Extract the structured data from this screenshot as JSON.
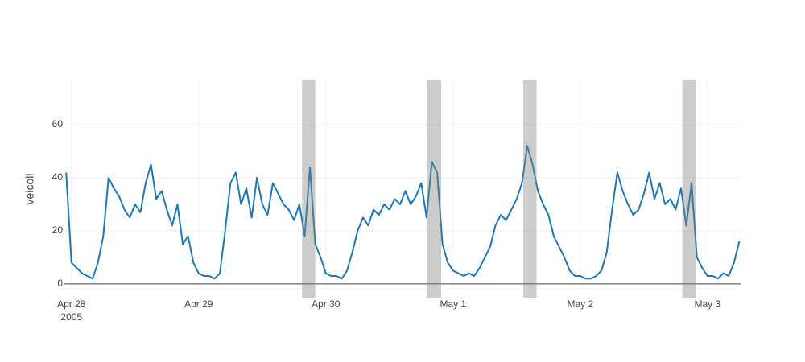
{
  "chart_data": {
    "type": "line",
    "y_title": "veicoli",
    "x": [
      "2005-04-27 23:00",
      "2005-04-28 00:00",
      "2005-04-28 01:00",
      "2005-04-28 02:00",
      "2005-04-28 03:00",
      "2005-04-28 04:00",
      "2005-04-28 05:00",
      "2005-04-28 06:00",
      "2005-04-28 07:00",
      "2005-04-28 08:00",
      "2005-04-28 09:00",
      "2005-04-28 10:00",
      "2005-04-28 11:00",
      "2005-04-28 12:00",
      "2005-04-28 13:00",
      "2005-04-28 14:00",
      "2005-04-28 15:00",
      "2005-04-28 16:00",
      "2005-04-28 17:00",
      "2005-04-28 18:00",
      "2005-04-28 19:00",
      "2005-04-28 20:00",
      "2005-04-28 21:00",
      "2005-04-28 22:00",
      "2005-04-28 23:00",
      "2005-04-29 00:00",
      "2005-04-29 01:00",
      "2005-04-29 02:00",
      "2005-04-29 03:00",
      "2005-04-29 04:00",
      "2005-04-29 05:00",
      "2005-04-29 06:00",
      "2005-04-29 07:00",
      "2005-04-29 08:00",
      "2005-04-29 09:00",
      "2005-04-29 10:00",
      "2005-04-29 11:00",
      "2005-04-29 12:00",
      "2005-04-29 13:00",
      "2005-04-29 14:00",
      "2005-04-29 15:00",
      "2005-04-29 16:00",
      "2005-04-29 17:00",
      "2005-04-29 18:00",
      "2005-04-29 19:00",
      "2005-04-29 20:00",
      "2005-04-29 21:00",
      "2005-04-29 22:00",
      "2005-04-29 23:00",
      "2005-04-30 00:00",
      "2005-04-30 01:00",
      "2005-04-30 02:00",
      "2005-04-30 03:00",
      "2005-04-30 04:00",
      "2005-04-30 05:00",
      "2005-04-30 06:00",
      "2005-04-30 07:00",
      "2005-04-30 08:00",
      "2005-04-30 09:00",
      "2005-04-30 10:00",
      "2005-04-30 11:00",
      "2005-04-30 12:00",
      "2005-04-30 13:00",
      "2005-04-30 14:00",
      "2005-04-30 15:00",
      "2005-04-30 16:00",
      "2005-04-30 17:00",
      "2005-04-30 18:00",
      "2005-04-30 19:00",
      "2005-04-30 20:00",
      "2005-04-30 21:00",
      "2005-04-30 22:00",
      "2005-04-30 23:00",
      "2005-05-01 00:00",
      "2005-05-01 01:00",
      "2005-05-01 02:00",
      "2005-05-01 03:00",
      "2005-05-01 04:00",
      "2005-05-01 05:00",
      "2005-05-01 06:00",
      "2005-05-01 07:00",
      "2005-05-01 08:00",
      "2005-05-01 09:00",
      "2005-05-01 10:00",
      "2005-05-01 11:00",
      "2005-05-01 12:00",
      "2005-05-01 13:00",
      "2005-05-01 14:00",
      "2005-05-01 15:00",
      "2005-05-01 16:00",
      "2005-05-01 17:00",
      "2005-05-01 18:00",
      "2005-05-01 19:00",
      "2005-05-01 20:00",
      "2005-05-01 21:00",
      "2005-05-01 22:00",
      "2005-05-01 23:00",
      "2005-05-02 00:00",
      "2005-05-02 01:00",
      "2005-05-02 02:00",
      "2005-05-02 03:00",
      "2005-05-02 04:00",
      "2005-05-02 05:00",
      "2005-05-02 06:00",
      "2005-05-02 07:00",
      "2005-05-02 08:00",
      "2005-05-02 09:00",
      "2005-05-02 10:00",
      "2005-05-02 11:00",
      "2005-05-02 12:00",
      "2005-05-02 13:00",
      "2005-05-02 14:00",
      "2005-05-02 15:00",
      "2005-05-02 16:00",
      "2005-05-02 17:00",
      "2005-05-02 18:00",
      "2005-05-02 19:00",
      "2005-05-02 20:00",
      "2005-05-02 21:00",
      "2005-05-02 22:00",
      "2005-05-02 23:00",
      "2005-05-03 00:00",
      "2005-05-03 01:00",
      "2005-05-03 02:00",
      "2005-05-03 03:00",
      "2005-05-03 04:00",
      "2005-05-03 05:00",
      "2005-05-03 06:00"
    ],
    "series": [
      {
        "color": "#1f77b4",
        "values": [
          42,
          8,
          6,
          4,
          3,
          2,
          8,
          18,
          40,
          36,
          33,
          28,
          25,
          30,
          27,
          38,
          45,
          32,
          35,
          28,
          22,
          30,
          15,
          18,
          8,
          4,
          3,
          3,
          2,
          4,
          20,
          38,
          42,
          30,
          36,
          25,
          40,
          30,
          26,
          38,
          34,
          30,
          28,
          24,
          30,
          18,
          44,
          15,
          10,
          4,
          3,
          3,
          2,
          5,
          12,
          20,
          25,
          22,
          28,
          26,
          30,
          28,
          32,
          30,
          35,
          30,
          33,
          38,
          25,
          46,
          42,
          15,
          8,
          5,
          4,
          3,
          4,
          3,
          6,
          10,
          14,
          22,
          26,
          24,
          28,
          32,
          38,
          52,
          45,
          35,
          30,
          26,
          18,
          14,
          10,
          5,
          3,
          3,
          2,
          2,
          3,
          5,
          12,
          28,
          42,
          35,
          30,
          26,
          28,
          34,
          42,
          32,
          38,
          30,
          32,
          28,
          36,
          22,
          38,
          10,
          6,
          3,
          3,
          2,
          4,
          3,
          8,
          16
        ]
      }
    ],
    "shaded_ranges": [
      [
        "2005-04-29 19:30",
        "2005-04-29 22:00"
      ],
      [
        "2005-04-30 19:00",
        "2005-04-30 21:45"
      ],
      [
        "2005-05-01 13:15",
        "2005-05-01 15:45"
      ],
      [
        "2005-05-02 19:15",
        "2005-05-02 21:50"
      ]
    ],
    "shade_color": "#808080",
    "xlim": [
      "2005-04-27 22:40",
      "2005-05-03 06:15"
    ],
    "xticks": [
      {
        "value": "2005-04-28 00:00",
        "label": "Apr 28"
      },
      {
        "value": "2005-04-29 00:00",
        "label": "Apr 29"
      },
      {
        "value": "2005-04-30 00:00",
        "label": "Apr 30"
      },
      {
        "value": "2005-05-01 00:00",
        "label": "May 1"
      },
      {
        "value": "2005-05-02 00:00",
        "label": "May 2"
      },
      {
        "value": "2005-05-03 00:00",
        "label": "May 3"
      }
    ],
    "x_year_label": "2005",
    "ylim": [
      -5.2,
      76.7
    ],
    "yticks": [
      0,
      20,
      40,
      60
    ],
    "grid": true
  }
}
